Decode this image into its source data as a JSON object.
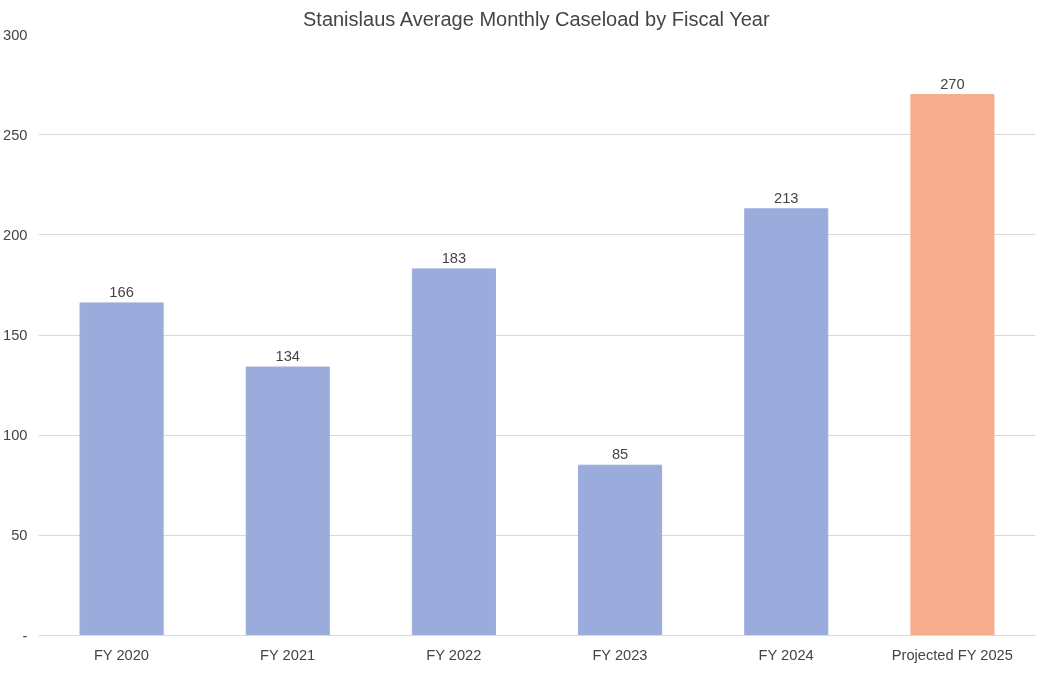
{
  "chart_data": {
    "type": "bar",
    "title": "Stanislaus Average Monthly Caseload by Fiscal Year",
    "categories": [
      "FY 2020",
      "FY 2021",
      "FY 2022",
      "FY 2023",
      "FY 2024",
      "Projected FY 2025"
    ],
    "values": [
      166,
      134,
      183,
      85,
      213,
      270
    ],
    "colors": [
      "#9bacdc",
      "#9bacdc",
      "#9bacdc",
      "#9bacdc",
      "#9bacdc",
      "#f5ad8e"
    ],
    "ylim": [
      0,
      300
    ],
    "yticks": [
      {
        "value": 0,
        "label": "-"
      },
      50,
      100,
      150,
      200,
      250,
      300
    ],
    "grid": "y",
    "data_labels": true
  }
}
